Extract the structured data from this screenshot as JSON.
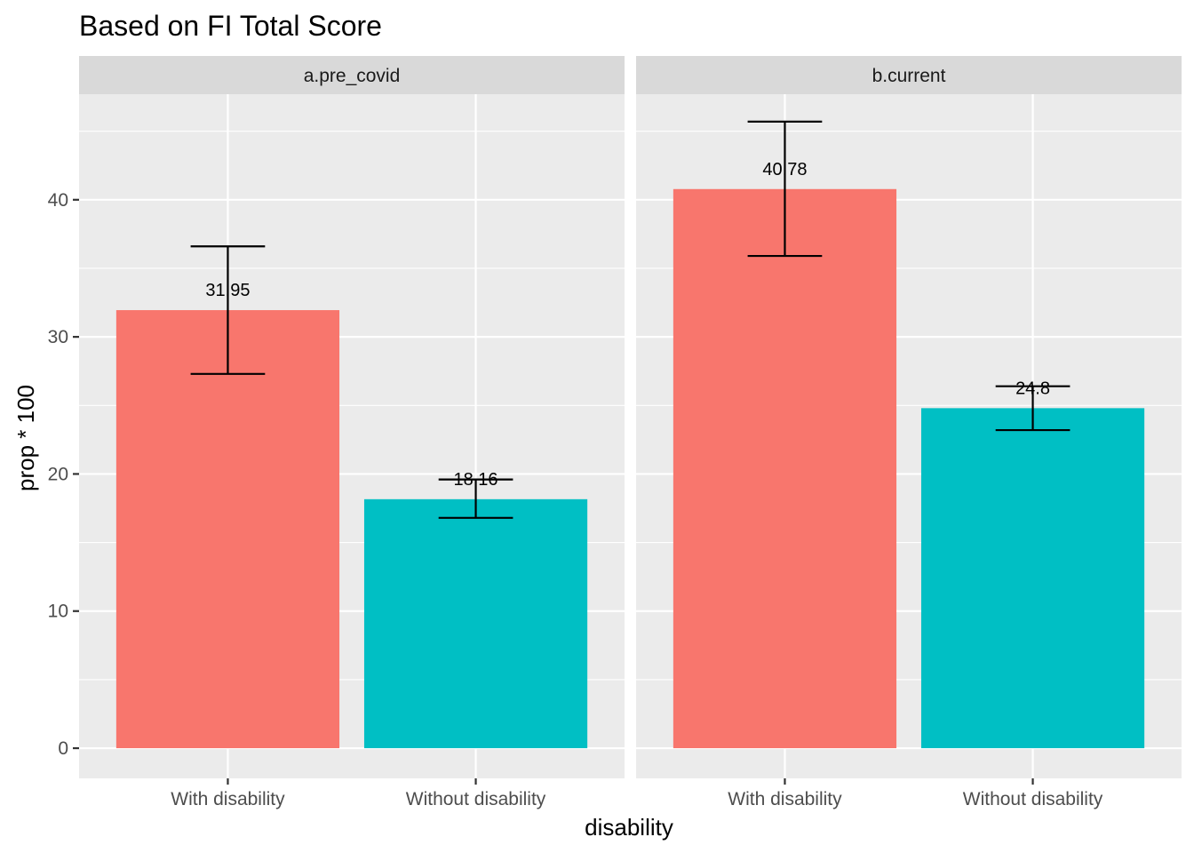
{
  "chart_data": {
    "type": "bar",
    "title": "Based on FI Total Score",
    "xlabel": "disability",
    "ylabel": "prop * 100",
    "ylim": [
      -2.2,
      47.7
    ],
    "yticks": [
      0,
      10,
      20,
      30,
      40
    ],
    "categories": [
      "With disability",
      "Without disability"
    ],
    "colors": [
      "#F8766D",
      "#00BFC4"
    ],
    "grid": true,
    "legend": "none",
    "panels": [
      {
        "label": "a.pre_covid",
        "values": [
          31.95,
          18.16
        ],
        "labels": [
          "31.95",
          "18.16"
        ],
        "error_low": [
          27.3,
          16.8
        ],
        "error_high": [
          36.6,
          19.6
        ]
      },
      {
        "label": "b.current",
        "values": [
          40.78,
          24.8
        ],
        "labels": [
          "40.78",
          "24.8"
        ],
        "error_low": [
          35.9,
          23.2
        ],
        "error_high": [
          45.7,
          26.4
        ]
      }
    ]
  }
}
